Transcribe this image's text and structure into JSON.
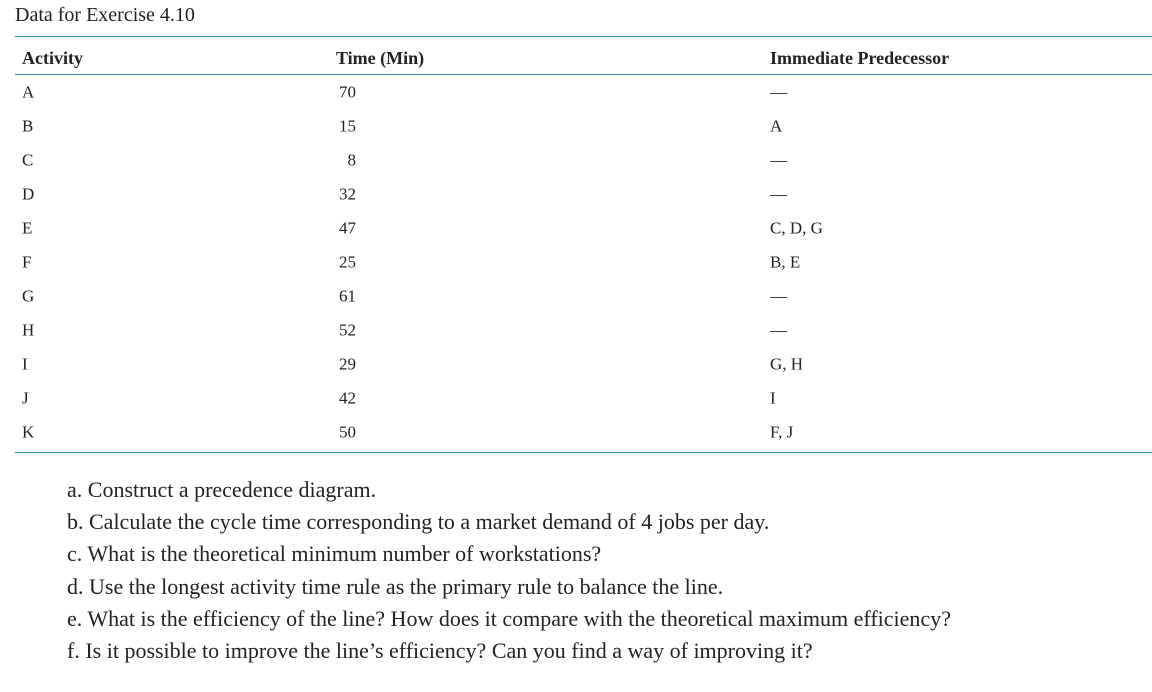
{
  "header": {
    "title": "Data for Exercise 4.10"
  },
  "table": {
    "columns": [
      "Activity",
      "Time (Min)",
      "Immediate Predecessor"
    ],
    "rows": [
      [
        "A",
        70,
        "—"
      ],
      [
        "B",
        15,
        "A"
      ],
      [
        "C",
        8,
        "—"
      ],
      [
        "D",
        32,
        "—"
      ],
      [
        "E",
        47,
        "C, D, G"
      ],
      [
        "F",
        25,
        "B, E"
      ],
      [
        "G",
        61,
        "—"
      ],
      [
        "H",
        52,
        "—"
      ],
      [
        "I",
        29,
        "G, H"
      ],
      [
        "J",
        42,
        "I"
      ],
      [
        "K",
        50,
        "F, J"
      ]
    ]
  },
  "questions": [
    "a. Construct a precedence diagram.",
    "b. Calculate the cycle time corresponding to a market demand of 4 jobs per day.",
    "c. What is the theoretical minimum number of workstations?",
    "d. Use the longest activity time rule as the primary rule to balance the line.",
    "e. What is the efficiency of the line? How does it compare with the theoretical maximum efficiency?",
    "f. Is it possible to improve the line’s efficiency? Can you find a way of improving it?"
  ]
}
